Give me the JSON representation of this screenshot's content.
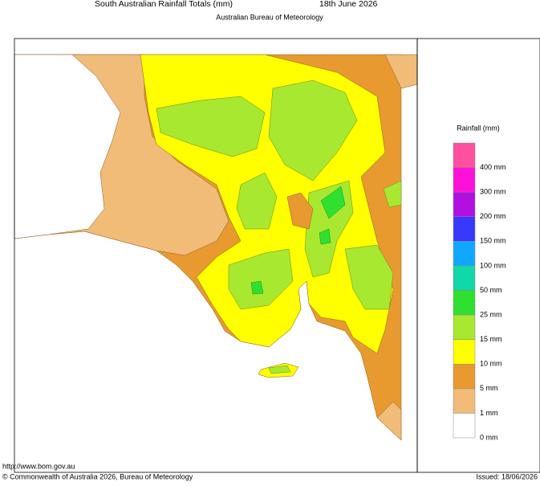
{
  "header": {
    "title": "South Australian Rainfall Totals (mm)",
    "date": "18th June 2026",
    "subtitle": "Australian Bureau of Meteorology"
  },
  "legend": {
    "title": "Rainfall (mm)",
    "colors": [
      "#ff50a0",
      "#ff10d8",
      "#b010e0",
      "#3838ff",
      "#10a8ff",
      "#10d8a8",
      "#30e030",
      "#a8e830",
      "#ffff00",
      "#e89a30",
      "#f0bc78",
      "#ffffff"
    ],
    "labels": [
      "400 mm",
      "300 mm",
      "200 mm",
      "150 mm",
      "100 mm",
      "50 mm",
      "25 mm",
      "15 mm",
      "10 mm",
      "5 mm",
      "1 mm",
      "0 mm"
    ]
  },
  "footer": {
    "url": "http://www.bom.gov.au",
    "copyright": "© Commonwealth of Australia 2026, Bureau of Meteorology",
    "issued": "Issued: 18/06/2026"
  }
}
